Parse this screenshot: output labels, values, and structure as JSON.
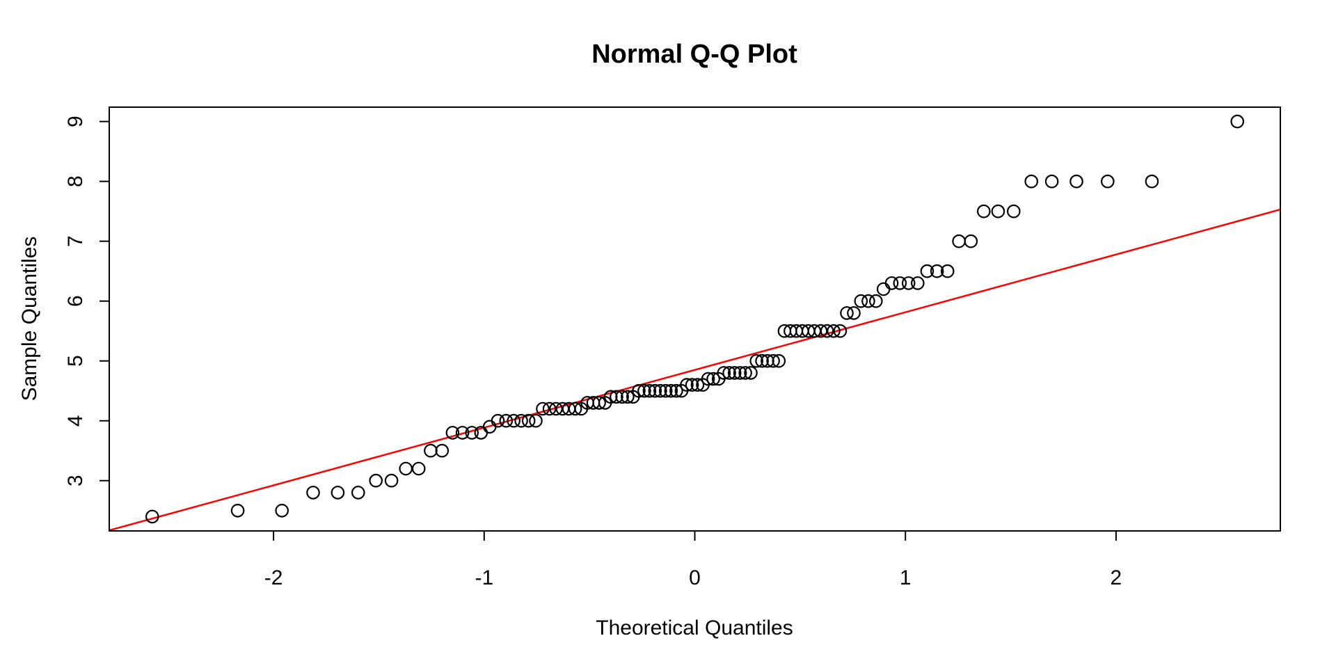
{
  "chart_data": {
    "type": "scatter",
    "title": "Normal Q-Q Plot",
    "xlabel": "Theoretical Quantiles",
    "ylabel": "Sample Quantiles",
    "xlim": [
      -2.78,
      2.78
    ],
    "ylim": [
      2.16,
      9.24
    ],
    "xticks": [
      -2,
      -1,
      0,
      1,
      2
    ],
    "yticks": [
      3,
      4,
      5,
      6,
      7,
      8,
      9
    ],
    "grid": false,
    "legend": "none",
    "point_style": {
      "shape": "open-circle",
      "color": "#000000"
    },
    "reference_line": {
      "name": "qqline",
      "slope": 0.964,
      "intercept": 4.85,
      "color": "#ff0000"
    },
    "n_points": 100,
    "points": {
      "x": [
        -2.576,
        -2.17,
        -1.96,
        -1.812,
        -1.695,
        -1.598,
        -1.514,
        -1.44,
        -1.372,
        -1.311,
        -1.254,
        -1.2,
        -1.15,
        -1.103,
        -1.058,
        -1.015,
        -0.974,
        -0.935,
        -0.896,
        -0.86,
        -0.824,
        -0.789,
        -0.755,
        -0.722,
        -0.69,
        -0.659,
        -0.628,
        -0.598,
        -0.568,
        -0.539,
        -0.51,
        -0.482,
        -0.454,
        -0.426,
        -0.399,
        -0.372,
        -0.345,
        -0.319,
        -0.293,
        -0.266,
        -0.24,
        -0.215,
        -0.189,
        -0.164,
        -0.138,
        -0.113,
        -0.088,
        -0.063,
        -0.038,
        -0.013,
        0.013,
        0.038,
        0.063,
        0.088,
        0.113,
        0.138,
        0.164,
        0.189,
        0.215,
        0.24,
        0.266,
        0.293,
        0.319,
        0.345,
        0.372,
        0.399,
        0.426,
        0.454,
        0.482,
        0.51,
        0.539,
        0.568,
        0.598,
        0.628,
        0.659,
        0.69,
        0.722,
        0.755,
        0.789,
        0.824,
        0.86,
        0.896,
        0.935,
        0.974,
        1.015,
        1.058,
        1.103,
        1.15,
        1.2,
        1.254,
        1.311,
        1.372,
        1.44,
        1.514,
        1.598,
        1.695,
        1.812,
        1.96,
        2.17,
        2.576
      ],
      "y": [
        2.4,
        2.5,
        2.5,
        2.8,
        2.8,
        2.8,
        3.0,
        3.0,
        3.2,
        3.2,
        3.5,
        3.5,
        3.8,
        3.8,
        3.8,
        3.8,
        3.9,
        4.0,
        4.0,
        4.0,
        4.0,
        4.0,
        4.0,
        4.2,
        4.2,
        4.2,
        4.2,
        4.2,
        4.2,
        4.2,
        4.3,
        4.3,
        4.3,
        4.3,
        4.4,
        4.4,
        4.4,
        4.4,
        4.4,
        4.5,
        4.5,
        4.5,
        4.5,
        4.5,
        4.5,
        4.5,
        4.5,
        4.5,
        4.6,
        4.6,
        4.6,
        4.6,
        4.7,
        4.7,
        4.7,
        4.8,
        4.8,
        4.8,
        4.8,
        4.8,
        4.8,
        5.0,
        5.0,
        5.0,
        5.0,
        5.0,
        5.5,
        5.5,
        5.5,
        5.5,
        5.5,
        5.5,
        5.5,
        5.5,
        5.5,
        5.5,
        5.8,
        5.8,
        6.0,
        6.0,
        6.0,
        6.2,
        6.3,
        6.3,
        6.3,
        6.3,
        6.5,
        6.5,
        6.5,
        7.0,
        7.0,
        7.5,
        7.5,
        7.5,
        8.0,
        8.0,
        8.0,
        8.0,
        8.0,
        9.0
      ]
    }
  }
}
